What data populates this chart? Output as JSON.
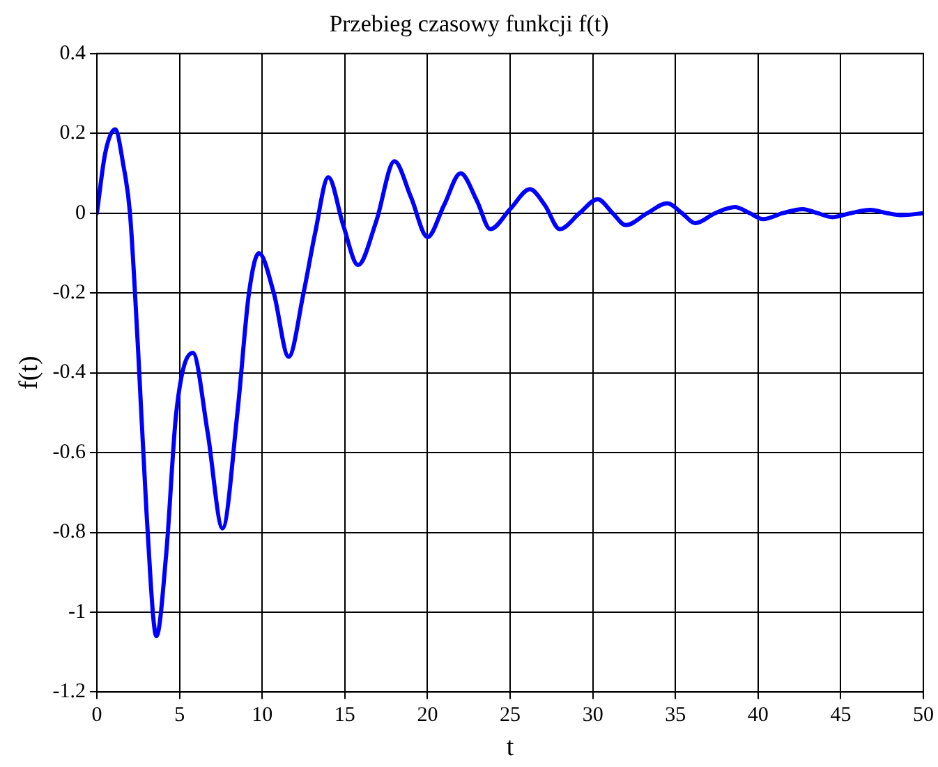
{
  "chart_data": {
    "type": "line",
    "title": "Przebieg czasowy funkcji f(t)",
    "xlabel": "t",
    "ylabel": "f(t)",
    "x": [
      0,
      0.5,
      1.1,
      1.6,
      2,
      2.5,
      3,
      3.6,
      4.2,
      4.8,
      5.8,
      6.7,
      7.6,
      8.5,
      9.2,
      9.8,
      10.7,
      11.6,
      12.5,
      13.2,
      14,
      14.9,
      15.8,
      16.9,
      18,
      19,
      20,
      21,
      22,
      23,
      23.8,
      25,
      26.2,
      27.1,
      28,
      29.2,
      30.3,
      31.2,
      32,
      33.3,
      34.5,
      35.4,
      36.2,
      37.4,
      38.6,
      39.5,
      40.3,
      41.5,
      42.7,
      43.6,
      44.5,
      45.6,
      46.8,
      47.8,
      48.7,
      50
    ],
    "series": [
      {
        "color": "#0000ff",
        "values": [
          0,
          0.15,
          0.21,
          0.12,
          0,
          -0.35,
          -0.75,
          -1.06,
          -0.85,
          -0.5,
          -0.35,
          -0.55,
          -0.79,
          -0.5,
          -0.2,
          -0.1,
          -0.2,
          -0.36,
          -0.2,
          -0.05,
          0.09,
          -0.03,
          -0.13,
          -0.02,
          0.13,
          0.04,
          -0.06,
          0.02,
          0.1,
          0.03,
          -0.04,
          0.01,
          0.06,
          0.02,
          -0.04,
          0,
          0.035,
          0,
          -0.03,
          0,
          0.025,
          0,
          -0.025,
          0,
          0.015,
          0,
          -0.015,
          0,
          0.01,
          0,
          -0.01,
          0,
          0.008,
          0,
          -0.005,
          0
        ]
      }
    ],
    "xlim": [
      0,
      50
    ],
    "xticks": [
      0,
      5,
      10,
      15,
      20,
      25,
      30,
      35,
      40,
      45,
      50
    ],
    "ylim": [
      -1.2,
      0.4
    ],
    "yticks": [
      -1.2,
      -1,
      -0.8,
      -0.6,
      -0.4,
      -0.2,
      0,
      0.2,
      0.4
    ],
    "grid": true,
    "legend": false,
    "marker": "none",
    "line_style": "solid"
  }
}
